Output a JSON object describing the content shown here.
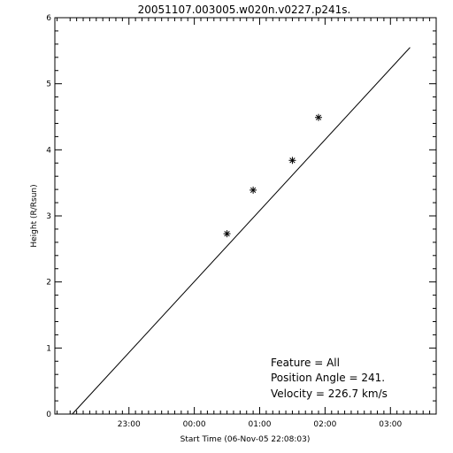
{
  "chart_data": {
    "type": "scatter",
    "title": "20051107.003005.w020n.v0227.p241s.",
    "xlabel": "Start Time (06-Nov-05 22:08:03)",
    "ylabel": "Height (R/Rsun)",
    "xlim": [
      "21:52",
      "03:42"
    ],
    "ylim": [
      0,
      6
    ],
    "x_ticks": [
      {
        "label": "23:00",
        "time": "23:00"
      },
      {
        "label": "00:00",
        "time": "00:00"
      },
      {
        "label": "01:00",
        "time": "01:00"
      },
      {
        "label": "02:00",
        "time": "02:00"
      },
      {
        "label": "03:00",
        "time": "03:00"
      }
    ],
    "y_ticks": [
      0,
      1,
      2,
      3,
      4,
      5,
      6
    ],
    "points": [
      {
        "time": "00:30",
        "height": 2.73
      },
      {
        "time": "00:54",
        "height": 3.39
      },
      {
        "time": "01:30",
        "height": 3.84
      },
      {
        "time": "01:54",
        "height": 4.49
      }
    ],
    "fit_line": {
      "start": {
        "time": "22:08",
        "height": 0.0
      },
      "end": {
        "time": "03:18",
        "height": 5.55
      }
    },
    "grid": false,
    "annotations": [
      {
        "label": "Feature",
        "value": "All"
      },
      {
        "label": "Position Angle",
        "value": "241."
      },
      {
        "label": "Velocity",
        "value": "226.7 km/s"
      }
    ]
  }
}
